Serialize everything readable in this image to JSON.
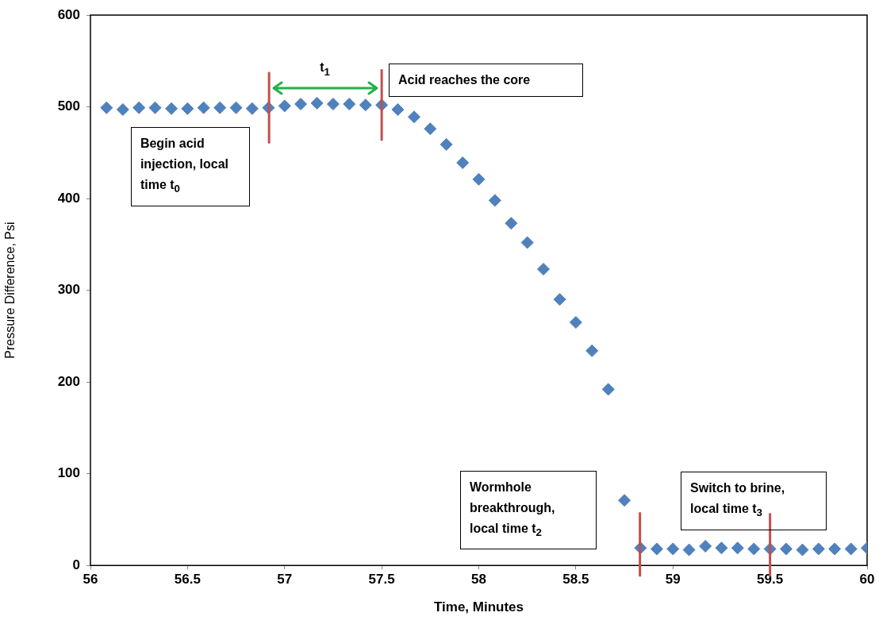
{
  "chart_data": {
    "type": "scatter",
    "xlabel": "Time, Minutes",
    "ylabel": "Pressure Difference, Psi",
    "xlim": [
      56,
      60
    ],
    "xticks": [
      56,
      56.5,
      57,
      57.5,
      58,
      58.5,
      59,
      59.5,
      60
    ],
    "ylim": [
      0,
      600
    ],
    "yticks": [
      0,
      100,
      200,
      300,
      400,
      500,
      600
    ],
    "marker": "diamond",
    "x": [
      56.083,
      56.167,
      56.25,
      56.333,
      56.417,
      56.5,
      56.583,
      56.667,
      56.75,
      56.833,
      56.917,
      57,
      57.083,
      57.167,
      57.25,
      57.333,
      57.417,
      57.5,
      57.583,
      57.667,
      57.75,
      57.833,
      57.917,
      58,
      58.083,
      58.167,
      58.25,
      58.333,
      58.417,
      58.5,
      58.583,
      58.667,
      58.75,
      58.833,
      58.917,
      59,
      59.083,
      59.167,
      59.25,
      59.333,
      59.417,
      59.5,
      59.583,
      59.667,
      59.75,
      59.833,
      59.917,
      60
    ],
    "series": [
      {
        "color": "#4f81bd",
        "values": [
          499,
          497,
          499,
          499,
          498,
          498,
          499,
          499,
          499,
          498,
          499,
          501,
          503,
          504,
          503,
          503,
          502,
          502,
          497,
          489,
          476,
          459,
          439,
          421,
          398,
          373,
          352,
          323,
          290,
          265,
          234,
          192,
          71,
          19,
          18,
          18,
          17,
          21,
          19,
          19,
          18,
          18,
          18,
          17,
          18,
          18,
          18,
          19
        ]
      }
    ],
    "ref_lines": [
      {
        "axis": "x",
        "value": 56.92,
        "color": "#c0504d"
      },
      {
        "axis": "x",
        "value": 57.5,
        "color": "#c0504d"
      },
      {
        "axis": "x",
        "value": 58.83,
        "color": "#c0504d"
      },
      {
        "axis": "x",
        "value": 59.5,
        "color": "#c0504d"
      }
    ],
    "annotations": [
      "Begin acid injection, local time t$_{0}$",
      "t$_{1}$",
      "Acid reaches the core",
      "Wormhole breakthrough, local time t$_{2}$",
      "Switch to brine, local time t$_{3}$"
    ]
  }
}
